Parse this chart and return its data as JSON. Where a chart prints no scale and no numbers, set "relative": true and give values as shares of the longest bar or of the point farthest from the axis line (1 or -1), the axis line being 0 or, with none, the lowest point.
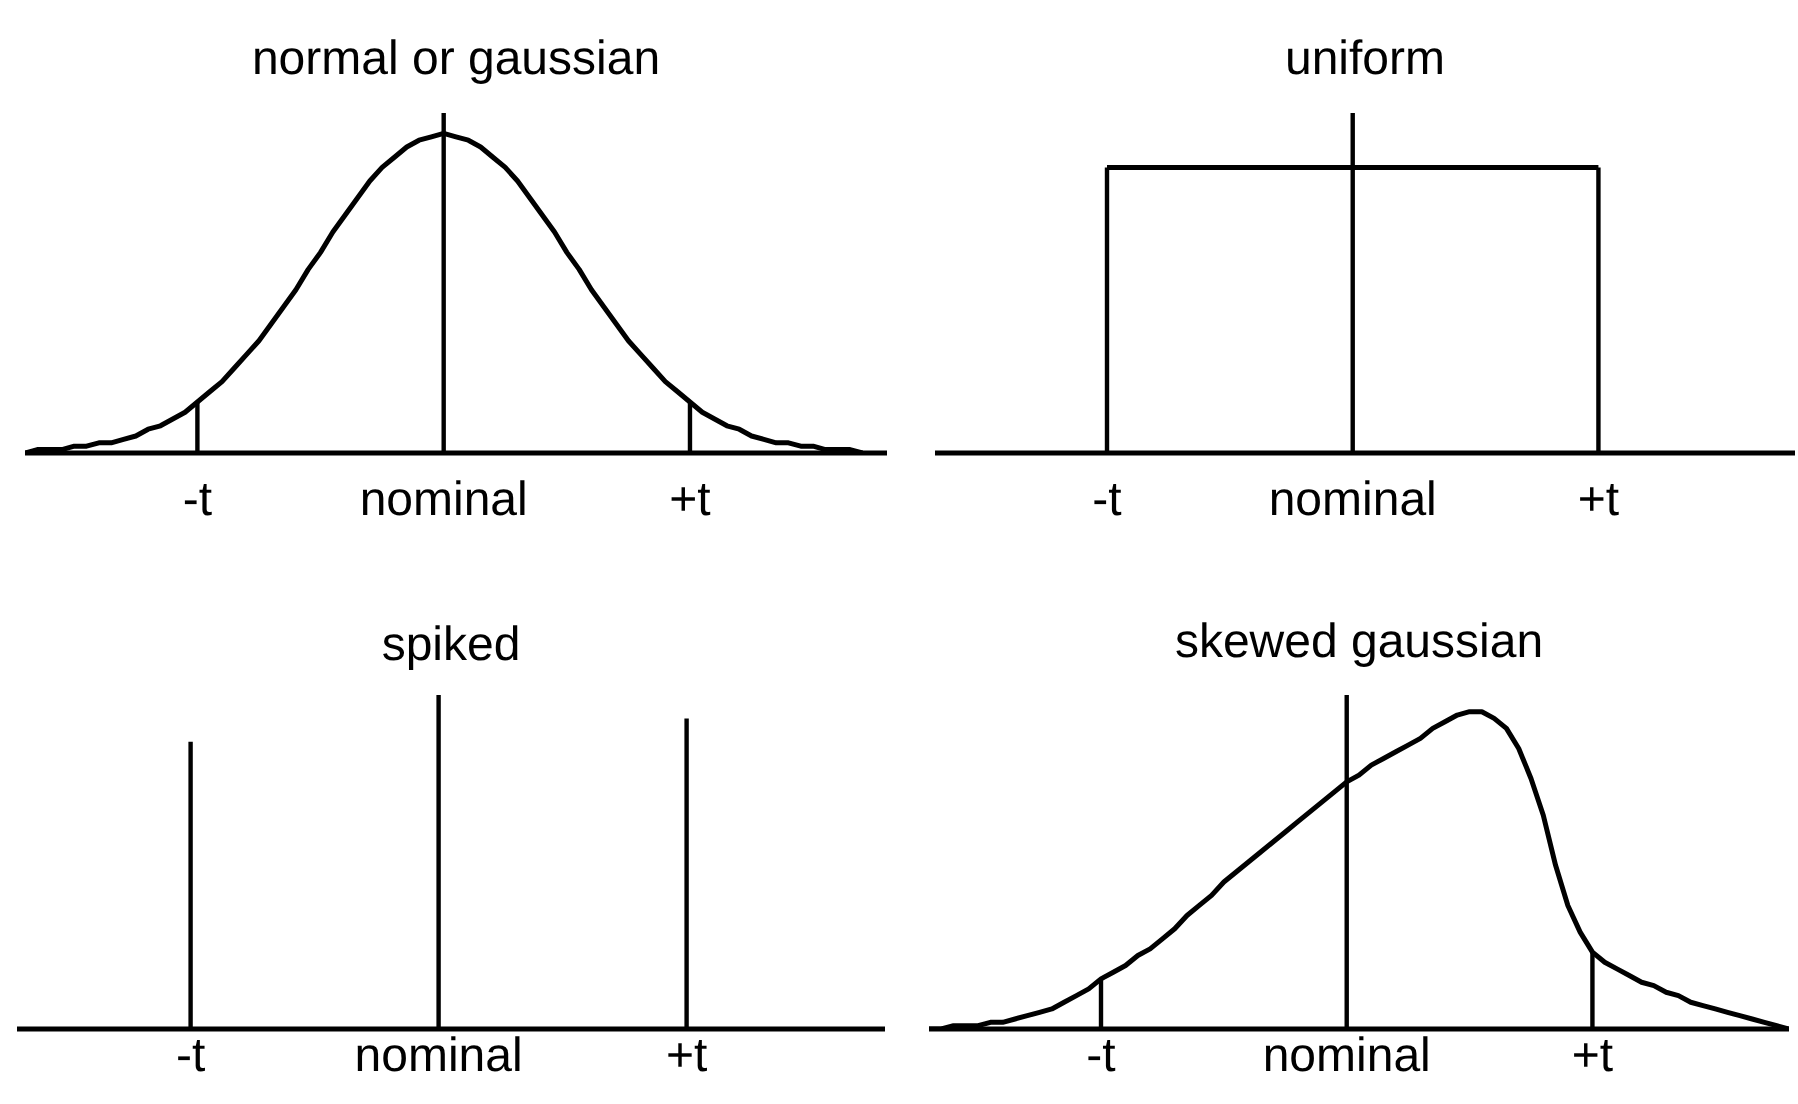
{
  "chart_data": [
    {
      "type": "line",
      "title": "normal or gaussian",
      "relative": true,
      "categories": [
        null,
        null,
        null,
        null,
        null,
        null,
        null,
        null,
        null,
        null,
        null,
        null,
        null,
        null,
        "-t",
        null,
        null,
        null,
        null,
        null,
        null,
        null,
        null,
        null,
        null,
        null,
        null,
        null,
        null,
        null,
        null,
        null,
        null,
        null,
        "nominal",
        null,
        null,
        null,
        null,
        null,
        null,
        null,
        null,
        null,
        null,
        null,
        null,
        null,
        null,
        null,
        null,
        null,
        null,
        null,
        "+t",
        null,
        null,
        null,
        null,
        null,
        null,
        null,
        null,
        null,
        null,
        null,
        null,
        null,
        null,
        null,
        null
      ],
      "series": [
        {
          "type": "line",
          "color": "#000000",
          "values": [
            0,
            0.01,
            0.01,
            0.01,
            0.02,
            0.02,
            0.03,
            0.03,
            0.04,
            0.05,
            0.07,
            0.08,
            0.1,
            0.12,
            0.15,
            0.18,
            0.21,
            0.25,
            0.29,
            0.33,
            0.38,
            0.43,
            0.48,
            0.54,
            0.59,
            0.65,
            0.7,
            0.75,
            0.8,
            0.84,
            0.87,
            0.9,
            0.92,
            0.93,
            0.94,
            0.93,
            0.92,
            0.9,
            0.87,
            0.84,
            0.8,
            0.75,
            0.7,
            0.65,
            0.59,
            0.54,
            0.48,
            0.43,
            0.38,
            0.33,
            0.29,
            0.25,
            0.21,
            0.18,
            0.15,
            0.12,
            0.1,
            0.08,
            0.07,
            0.05,
            0.04,
            0.03,
            0.03,
            0.02,
            0.02,
            0.01,
            0.01,
            0.01,
            0,
            null,
            null
          ]
        },
        {
          "type": "bar",
          "color": "#000000",
          "values": [
            null,
            null,
            null,
            null,
            null,
            null,
            null,
            null,
            null,
            null,
            null,
            null,
            null,
            null,
            0.15,
            null,
            null,
            null,
            null,
            null,
            null,
            null,
            null,
            null,
            null,
            null,
            null,
            null,
            null,
            null,
            null,
            null,
            null,
            null,
            1,
            null,
            null,
            null,
            null,
            null,
            null,
            null,
            null,
            null,
            null,
            null,
            null,
            null,
            null,
            null,
            null,
            null,
            null,
            null,
            0.15,
            null,
            null,
            null,
            null,
            null,
            null,
            null,
            null,
            null,
            null,
            null,
            null,
            null,
            null,
            null,
            null
          ]
        }
      ]
    },
    {
      "type": "line",
      "title": "uniform",
      "relative": true,
      "categories": [
        null,
        null,
        null,
        null,
        null,
        null,
        null,
        null,
        null,
        null,
        null,
        null,
        null,
        null,
        "-t",
        null,
        null,
        null,
        null,
        null,
        null,
        null,
        null,
        null,
        null,
        null,
        null,
        null,
        null,
        null,
        null,
        null,
        null,
        null,
        "nominal",
        null,
        null,
        null,
        null,
        null,
        null,
        null,
        null,
        null,
        null,
        null,
        null,
        null,
        null,
        null,
        null,
        null,
        null,
        null,
        "+t",
        null,
        null,
        null,
        null,
        null,
        null,
        null,
        null,
        null,
        null,
        null,
        null,
        null,
        null,
        null,
        null
      ],
      "series": [
        {
          "type": "line",
          "color": "#000000",
          "values": [
            null,
            null,
            null,
            null,
            null,
            null,
            null,
            null,
            null,
            null,
            null,
            null,
            null,
            null,
            0.84,
            0.84,
            0.84,
            0.84,
            0.84,
            0.84,
            0.84,
            0.84,
            0.84,
            0.84,
            0.84,
            0.84,
            0.84,
            0.84,
            0.84,
            0.84,
            0.84,
            0.84,
            0.84,
            0.84,
            0.84,
            0.84,
            0.84,
            0.84,
            0.84,
            0.84,
            0.84,
            0.84,
            0.84,
            0.84,
            0.84,
            0.84,
            0.84,
            0.84,
            0.84,
            0.84,
            0.84,
            0.84,
            0.84,
            0.84,
            0.84,
            null,
            null,
            null,
            null,
            null,
            null,
            null,
            null,
            null,
            null,
            null,
            null,
            null,
            null,
            null,
            null
          ]
        },
        {
          "type": "bar",
          "color": "#000000",
          "values": [
            null,
            null,
            null,
            null,
            null,
            null,
            null,
            null,
            null,
            null,
            null,
            null,
            null,
            null,
            0.84,
            null,
            null,
            null,
            null,
            null,
            null,
            null,
            null,
            null,
            null,
            null,
            null,
            null,
            null,
            null,
            null,
            null,
            null,
            null,
            1,
            null,
            null,
            null,
            null,
            null,
            null,
            null,
            null,
            null,
            null,
            null,
            null,
            null,
            null,
            null,
            null,
            null,
            null,
            null,
            0.84,
            null,
            null,
            null,
            null,
            null,
            null,
            null,
            null,
            null,
            null,
            null,
            null,
            null,
            null,
            null,
            null
          ]
        }
      ]
    },
    {
      "type": "bar",
      "title": "spiked",
      "relative": true,
      "categories": [
        null,
        null,
        null,
        null,
        null,
        null,
        null,
        null,
        null,
        null,
        null,
        null,
        null,
        null,
        "-t",
        null,
        null,
        null,
        null,
        null,
        null,
        null,
        null,
        null,
        null,
        null,
        null,
        null,
        null,
        null,
        null,
        null,
        null,
        null,
        "nominal",
        null,
        null,
        null,
        null,
        null,
        null,
        null,
        null,
        null,
        null,
        null,
        null,
        null,
        null,
        null,
        null,
        null,
        null,
        null,
        "+t",
        null,
        null,
        null,
        null,
        null,
        null,
        null,
        null,
        null,
        null,
        null,
        null,
        null,
        null,
        null,
        null
      ],
      "series": [
        {
          "color": "#000000",
          "values": [
            null,
            null,
            null,
            null,
            null,
            null,
            null,
            null,
            null,
            null,
            null,
            null,
            null,
            null,
            0.86,
            null,
            null,
            null,
            null,
            null,
            null,
            null,
            null,
            null,
            null,
            null,
            null,
            null,
            null,
            null,
            null,
            null,
            null,
            null,
            1,
            null,
            null,
            null,
            null,
            null,
            null,
            null,
            null,
            null,
            null,
            null,
            null,
            null,
            null,
            null,
            null,
            null,
            null,
            null,
            0.93,
            null,
            null,
            null,
            null,
            null,
            null,
            null,
            null,
            null,
            null,
            null,
            null,
            null,
            null,
            null,
            null
          ]
        }
      ]
    },
    {
      "type": "line",
      "title": "skewed gaussian",
      "relative": true,
      "categories": [
        null,
        null,
        null,
        null,
        null,
        null,
        null,
        null,
        null,
        null,
        null,
        null,
        null,
        null,
        "-t",
        null,
        null,
        null,
        null,
        null,
        null,
        null,
        null,
        null,
        null,
        null,
        null,
        null,
        null,
        null,
        null,
        null,
        null,
        null,
        "nominal",
        null,
        null,
        null,
        null,
        null,
        null,
        null,
        null,
        null,
        null,
        null,
        null,
        null,
        null,
        null,
        null,
        null,
        null,
        null,
        "+t",
        null,
        null,
        null,
        null,
        null,
        null,
        null,
        null,
        null,
        null,
        null,
        null,
        null,
        null,
        null,
        null
      ],
      "series": [
        {
          "type": "line",
          "color": "#000000",
          "values": [
            0,
            0,
            0.01,
            0.01,
            0.01,
            0.02,
            0.02,
            0.03,
            0.04,
            0.05,
            0.06,
            0.08,
            0.1,
            0.12,
            0.15,
            0.17,
            0.19,
            0.22,
            0.24,
            0.27,
            0.3,
            0.34,
            0.37,
            0.4,
            0.44,
            0.47,
            0.5,
            0.53,
            0.56,
            0.59,
            0.62,
            0.65,
            0.68,
            0.71,
            0.74,
            0.76,
            0.79,
            0.81,
            0.83,
            0.85,
            0.87,
            0.9,
            0.92,
            0.94,
            0.95,
            0.95,
            0.93,
            0.9,
            0.84,
            0.75,
            0.64,
            0.49,
            0.37,
            0.29,
            0.23,
            0.2,
            0.18,
            0.16,
            0.14,
            0.13,
            0.11,
            0.1,
            0.08,
            0.07,
            0.06,
            0.05,
            0.04,
            0.03,
            0.02,
            0.01,
            0
          ]
        },
        {
          "type": "bar",
          "color": "#000000",
          "values": [
            null,
            null,
            null,
            null,
            null,
            null,
            null,
            null,
            null,
            null,
            null,
            null,
            null,
            null,
            0.15,
            null,
            null,
            null,
            null,
            null,
            null,
            null,
            null,
            null,
            null,
            null,
            null,
            null,
            null,
            null,
            null,
            null,
            null,
            null,
            1,
            null,
            null,
            null,
            null,
            null,
            null,
            null,
            null,
            null,
            null,
            null,
            null,
            null,
            null,
            null,
            null,
            null,
            null,
            null,
            0.23,
            null,
            null,
            null,
            null,
            null,
            null,
            null,
            null,
            null,
            null,
            null,
            null,
            null,
            null,
            null,
            null
          ]
        }
      ]
    }
  ]
}
